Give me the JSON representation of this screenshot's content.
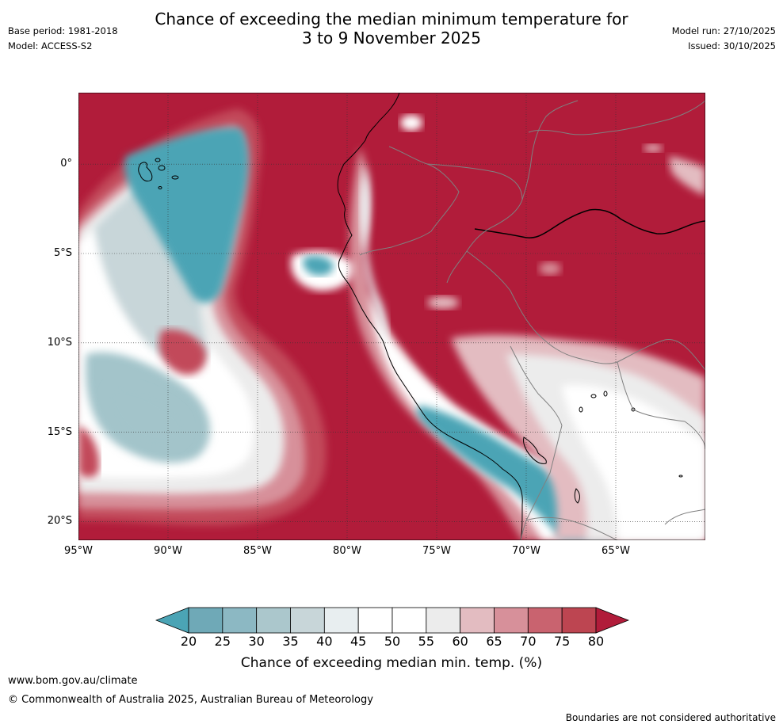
{
  "header": {
    "title_line1": "Chance of exceeding the median minimum temperature for",
    "title_line2": "3 to 9 November 2025",
    "base_period": "Base period: 1981-2018",
    "model": "Model: ACCESS-S2",
    "model_run": "Model run: 27/10/2025",
    "issued": "Issued: 30/10/2025"
  },
  "map": {
    "lat_labels": [
      "0°",
      "5°S",
      "10°S",
      "15°S",
      "20°S"
    ],
    "lon_labels": [
      "95°W",
      "90°W",
      "85°W",
      "80°W",
      "75°W",
      "70°W",
      "65°W"
    ],
    "colors": {
      "very_high": "#b11c3a",
      "high": "#c24a5a",
      "mid_high": "#d7909a",
      "low_high": "#e3bcc1",
      "neutral": "#ececec",
      "white": "#ffffff",
      "low_neutral": "#e8eef0",
      "low": "#c8d6d9",
      "lower": "#a3c4ca",
      "very_low": "#4ba4b5",
      "coast": "#000000",
      "border": "#808080",
      "grid": "#333333"
    }
  },
  "colorbar": {
    "labels": [
      "20",
      "25",
      "30",
      "35",
      "40",
      "45",
      "50",
      "55",
      "60",
      "65",
      "70",
      "75",
      "80"
    ],
    "colors": [
      "#6fa9b7",
      "#8cb8c3",
      "#abc7cc",
      "#c8d6d9",
      "#e8eef0",
      "#ffffff",
      "#ffffff",
      "#ececec",
      "#e3bcc1",
      "#d7909a",
      "#c9636f",
      "#bd4551"
    ],
    "under_color": "#4ba4b5",
    "over_color": "#b11c3a",
    "title": "Chance of exceeding median min. temp. (%)"
  },
  "footer": {
    "url": "www.bom.gov.au/climate",
    "copyright": "© Commonwealth of Australia 2025, Australian Bureau of Meteorology",
    "disclaimer": "Boundaries are not considered authoritative"
  }
}
